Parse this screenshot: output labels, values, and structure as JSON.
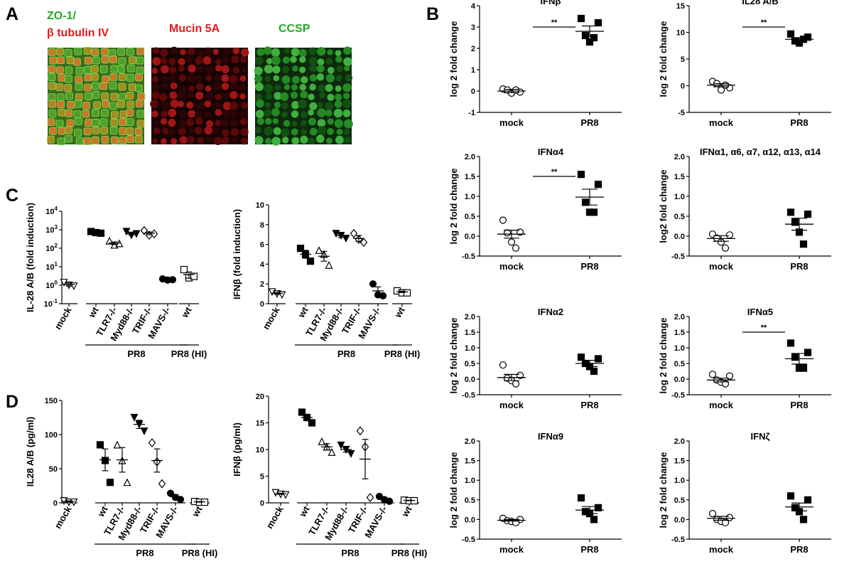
{
  "panel_labels": [
    "A",
    "B",
    "C",
    "D"
  ],
  "panelA": {
    "labels": [
      {
        "lines": [
          "ZO-1/",
          "β tubulin IV"
        ],
        "colors": [
          "#22aa22",
          "#e01a1a"
        ]
      },
      {
        "lines": [
          "Mucin 5A"
        ],
        "colors": [
          "#e01a1a"
        ]
      },
      {
        "lines": [
          "CCSP"
        ],
        "colors": [
          "#22aa22"
        ]
      }
    ]
  },
  "colors": {
    "green": "#22aa22",
    "red": "#e01a1a",
    "black": "#000000"
  },
  "chart_data": [
    {
      "id": "B1",
      "type": "scatter",
      "title": "IFNβ",
      "ylabel": "log 2 fold change",
      "categories": [
        "mock",
        "PR8"
      ],
      "ylim": [
        -1,
        4
      ],
      "yticks": [
        -1,
        0,
        1,
        2,
        3,
        4
      ],
      "tick_labels": [
        "-1",
        "0",
        "1",
        "2",
        "3",
        "4"
      ],
      "series": [
        {
          "marker": "open-circle",
          "values": [
            0.1,
            -0.05,
            0.05,
            -0.1,
            0.05
          ]
        },
        {
          "marker": "filled-square",
          "values": [
            3.4,
            3.2,
            2.6,
            2.3,
            2.5
          ]
        }
      ],
      "means": [
        0.0,
        2.8
      ],
      "sem": [
        0.08,
        0.25
      ],
      "significance": "**"
    },
    {
      "id": "B2",
      "type": "scatter",
      "title": "IL28 A/B",
      "ylabel": "log 2 fold change",
      "categories": [
        "mock",
        "PR8"
      ],
      "ylim": [
        -5,
        15
      ],
      "yticks": [
        -5,
        0,
        5,
        10,
        15
      ],
      "tick_labels": [
        "-5",
        "0",
        "5",
        "10",
        "15"
      ],
      "series": [
        {
          "marker": "open-circle",
          "values": [
            0.8,
            -0.4,
            0.4,
            -0.8,
            0.1
          ]
        },
        {
          "marker": "filled-square",
          "values": [
            9.7,
            9.1,
            8.4,
            8.0,
            8.7
          ]
        }
      ],
      "means": [
        0.1,
        8.7
      ],
      "sem": [
        0.3,
        0.3
      ],
      "significance": "**"
    },
    {
      "id": "B3",
      "type": "scatter",
      "title": "IFNα4",
      "ylabel": "log 2 fold change",
      "categories": [
        "mock",
        "PR8"
      ],
      "ylim": [
        -0.5,
        2.0
      ],
      "yticks": [
        -0.5,
        0,
        0.5,
        1.0,
        1.5,
        2.0
      ],
      "tick_labels": [
        "-0.5",
        "0.0",
        "0.5",
        "1.0",
        "1.5",
        "2.0"
      ],
      "series": [
        {
          "marker": "open-circle",
          "values": [
            0.4,
            0.1,
            0.08,
            -0.15,
            -0.3
          ]
        },
        {
          "marker": "filled-square",
          "values": [
            1.55,
            1.3,
            0.85,
            0.6,
            0.6
          ]
        }
      ],
      "means": [
        0.05,
        0.98
      ],
      "sem": [
        0.1,
        0.2
      ],
      "significance": "**"
    },
    {
      "id": "B4",
      "type": "scatter",
      "title": "IFNα1, α6, α7, α12, α13, α14",
      "ylabel": "log2 fold change",
      "categories": [
        "mock",
        "PR8"
      ],
      "ylim": [
        -0.5,
        2.0
      ],
      "yticks": [
        -0.5,
        0,
        0.5,
        1.0,
        1.5,
        2.0
      ],
      "tick_labels": [
        "-0.5",
        "0.0",
        "0.5",
        "1.0",
        "1.5",
        "2.0"
      ],
      "series": [
        {
          "marker": "open-circle",
          "values": [
            0.05,
            0.03,
            -0.05,
            -0.15,
            -0.3
          ]
        },
        {
          "marker": "filled-square",
          "values": [
            0.6,
            0.55,
            0.35,
            0.1,
            -0.2
          ]
        }
      ],
      "means": [
        -0.06,
        0.3
      ],
      "sem": [
        0.07,
        0.15
      ],
      "significance": ""
    },
    {
      "id": "B5",
      "type": "scatter",
      "title": "IFNα2",
      "ylabel": "log 2 fold change",
      "categories": [
        "mock",
        "PR8"
      ],
      "ylim": [
        -0.5,
        2.0
      ],
      "yticks": [
        -0.5,
        0,
        0.5,
        1.0,
        1.5,
        2.0
      ],
      "tick_labels": [
        "-0.5",
        "0.0",
        "0.5",
        "1.0",
        "1.5",
        "2.0"
      ],
      "series": [
        {
          "marker": "open-circle",
          "values": [
            0.45,
            0.12,
            0.03,
            -0.05,
            -0.15
          ]
        },
        {
          "marker": "filled-square",
          "values": [
            0.7,
            0.65,
            0.5,
            0.4,
            0.25
          ]
        }
      ],
      "means": [
        0.05,
        0.5
      ],
      "sem": [
        0.1,
        0.1
      ],
      "significance": ""
    },
    {
      "id": "B6",
      "type": "scatter",
      "title": "IFNα5",
      "ylabel": "log 2 fold change",
      "categories": [
        "mock",
        "PR8"
      ],
      "ylim": [
        -0.5,
        2.0
      ],
      "yticks": [
        -0.5,
        0,
        0.5,
        1.0,
        1.5,
        2.0
      ],
      "tick_labels": [
        "-0.5",
        "0.0",
        "0.5",
        "1.0",
        "1.5",
        "2.0"
      ],
      "series": [
        {
          "marker": "open-circle",
          "values": [
            0.15,
            0.1,
            -0.03,
            -0.1,
            -0.15
          ]
        },
        {
          "marker": "filled-square",
          "values": [
            1.15,
            0.85,
            0.7,
            0.35,
            0.35
          ]
        }
      ],
      "means": [
        -0.03,
        0.65
      ],
      "sem": [
        0.06,
        0.17
      ],
      "significance": "**"
    },
    {
      "id": "B7",
      "type": "scatter",
      "title": "IFNα9",
      "ylabel": "log 2 fold change",
      "categories": [
        "mock",
        "PR8"
      ],
      "ylim": [
        -0.5,
        2.0
      ],
      "yticks": [
        -0.5,
        0,
        0.5,
        1.0,
        1.5,
        2.0
      ],
      "tick_labels": [
        "-0.5",
        "0.0",
        "0.5",
        "1.0",
        "1.5",
        "2.0"
      ],
      "series": [
        {
          "marker": "open-circle",
          "values": [
            0.03,
            0.0,
            -0.03,
            -0.05,
            -0.08
          ]
        },
        {
          "marker": "filled-square",
          "values": [
            0.55,
            0.3,
            0.2,
            0.15,
            0.0
          ]
        }
      ],
      "means": [
        -0.02,
        0.24
      ],
      "sem": [
        0.02,
        0.09
      ],
      "significance": ""
    },
    {
      "id": "B8",
      "type": "scatter",
      "title": "IFNζ",
      "ylabel": "log 2 fold change",
      "categories": [
        "mock",
        "PR8"
      ],
      "ylim": [
        -0.5,
        2.0
      ],
      "yticks": [
        -0.5,
        0,
        0.5,
        1.0,
        1.5,
        2.0
      ],
      "tick_labels": [
        "-0.5",
        "0.0",
        "0.5",
        "1.0",
        "1.5",
        "2.0"
      ],
      "series": [
        {
          "marker": "open-circle",
          "values": [
            0.15,
            0.05,
            0.0,
            -0.05,
            -0.08
          ]
        },
        {
          "marker": "filled-square",
          "values": [
            0.6,
            0.5,
            0.3,
            0.2,
            0.0
          ]
        }
      ],
      "means": [
        0.03,
        0.32
      ],
      "sem": [
        0.05,
        0.1
      ],
      "significance": ""
    },
    {
      "id": "C1",
      "type": "scatter",
      "scale": "log",
      "ylabel": "IL-28 A/B (fold induction)",
      "categories": [
        "mock",
        "wt",
        "TLR7-/-",
        "Myd88-/-",
        "TRIF-/-",
        "MAVS-/-",
        "wt"
      ],
      "ylim": [
        0.1,
        10000
      ],
      "yticks": [
        0.1,
        1,
        10,
        100,
        1000,
        10000
      ],
      "tick_labels": [
        "10-1",
        "100",
        "101",
        "102",
        "103",
        "104"
      ],
      "markers": [
        "open-triangle-down",
        "filled-square",
        "open-triangle",
        "filled-triangle-down",
        "open-diamond",
        "filled-circle",
        "open-square"
      ],
      "values": [
        [
          1.4,
          1.0,
          0.9
        ],
        [
          800,
          700,
          650
        ],
        [
          250,
          150,
          180
        ],
        [
          800,
          500,
          600
        ],
        [
          900,
          500,
          600
        ],
        [
          2.2,
          1.9,
          2.0
        ],
        [
          7,
          2.5,
          3
        ]
      ],
      "means": [
        1.1,
        720,
        190,
        620,
        650,
        2.0,
        3.8
      ],
      "sem": [
        0.2,
        45,
        30,
        90,
        110,
        0.1,
        1.4
      ],
      "groups": [
        {
          "label": "PR8",
          "from": 1,
          "to": 5
        },
        {
          "label": "PR8 (HI)",
          "from": 6,
          "to": 6
        }
      ]
    },
    {
      "id": "C2",
      "type": "scatter",
      "ylabel": "IFNβ (fold induction)",
      "categories": [
        "mock",
        "wt",
        "TLR7-/-",
        "Myd88-/-",
        "TRIF-/-",
        "MAVS-/-",
        "wt"
      ],
      "ylim": [
        0,
        10
      ],
      "yticks": [
        0,
        2,
        4,
        6,
        8,
        10
      ],
      "tick_labels": [
        "0",
        "2",
        "4",
        "6",
        "8",
        "10"
      ],
      "markers": [
        "open-triangle-down",
        "filled-square",
        "open-triangle",
        "filled-triangle-down",
        "open-diamond",
        "filled-circle",
        "open-square"
      ],
      "values": [
        [
          1.2,
          1.0,
          0.9
        ],
        [
          5.6,
          5.0,
          4.3
        ],
        [
          5.4,
          5.0,
          3.9
        ],
        [
          7.1,
          6.9,
          6.6
        ],
        [
          7.1,
          6.5,
          6.2
        ],
        [
          2.0,
          0.9,
          0.8
        ],
        [
          1.3,
          1.1,
          1.1
        ]
      ],
      "means": [
        1.05,
        5.0,
        4.8,
        6.9,
        6.6,
        1.3,
        1.2
      ],
      "sem": [
        0.1,
        0.4,
        0.5,
        0.2,
        0.3,
        0.4,
        0.07
      ],
      "groups": [
        {
          "label": "PR8",
          "from": 1,
          "to": 5
        },
        {
          "label": "PR8 (HI)",
          "from": 6,
          "to": 6
        }
      ]
    },
    {
      "id": "D1",
      "type": "scatter",
      "ylabel": "IL28 A/B (pg/ml)",
      "categories": [
        "mock",
        "wt",
        "TLR7-/-",
        "Myd88-/-",
        "TRIF-/-",
        "MAVS-/-",
        "wt"
      ],
      "ylim": [
        0,
        150
      ],
      "yticks": [
        0,
        50,
        100,
        150
      ],
      "tick_labels": [
        "0",
        "50",
        "100",
        "150"
      ],
      "markers": [
        "open-triangle-down",
        "filled-square",
        "open-triangle",
        "filled-triangle-down",
        "open-diamond",
        "filled-circle",
        "open-square"
      ],
      "values": [
        [
          3,
          1,
          1
        ],
        [
          85,
          62,
          30
        ],
        [
          85,
          62,
          30
        ],
        [
          125,
          115,
          105
        ],
        [
          88,
          60,
          28
        ],
        [
          14,
          8,
          5
        ],
        [
          2,
          1,
          1
        ]
      ],
      "means": [
        2,
        63,
        63,
        115,
        62,
        9,
        1.5
      ],
      "sem": [
        1,
        16,
        18,
        6,
        17,
        3,
        0.5
      ],
      "groups": [
        {
          "label": "PR8",
          "from": 1,
          "to": 5
        },
        {
          "label": "PR8 (HI)",
          "from": 6,
          "to": 6
        }
      ]
    },
    {
      "id": "D2",
      "type": "scatter",
      "ylabel": "IFNβ (pg/ml)",
      "categories": [
        "mock",
        "wt",
        "TLR7-/-",
        "Myd88-/-",
        "TRIF-/-",
        "MAVS-/-",
        "wt"
      ],
      "ylim": [
        0,
        20
      ],
      "yticks": [
        0,
        5,
        10,
        15,
        20
      ],
      "tick_labels": [
        "0",
        "5",
        "10",
        "15",
        "20"
      ],
      "markers": [
        "open-triangle-down",
        "filled-square",
        "open-triangle",
        "filled-triangle-down",
        "open-diamond",
        "filled-circle",
        "open-square"
      ],
      "values": [
        [
          1.9,
          1.6,
          1.5
        ],
        [
          17,
          16,
          15
        ],
        [
          11.5,
          10.5,
          9.5
        ],
        [
          10.8,
          10,
          9.2
        ],
        [
          13.5,
          10.5,
          1.0
        ],
        [
          1.2,
          0.6,
          0.3
        ],
        [
          0.5,
          0.4,
          0.4
        ]
      ],
      "means": [
        1.7,
        16,
        10.5,
        10,
        8.2,
        0.7,
        0.45
      ],
      "sem": [
        0.1,
        0.6,
        0.6,
        0.5,
        3.7,
        0.3,
        0.05
      ],
      "groups": [
        {
          "label": "PR8",
          "from": 1,
          "to": 5
        },
        {
          "label": "PR8 (HI)",
          "from": 6,
          "to": 6
        }
      ]
    }
  ]
}
